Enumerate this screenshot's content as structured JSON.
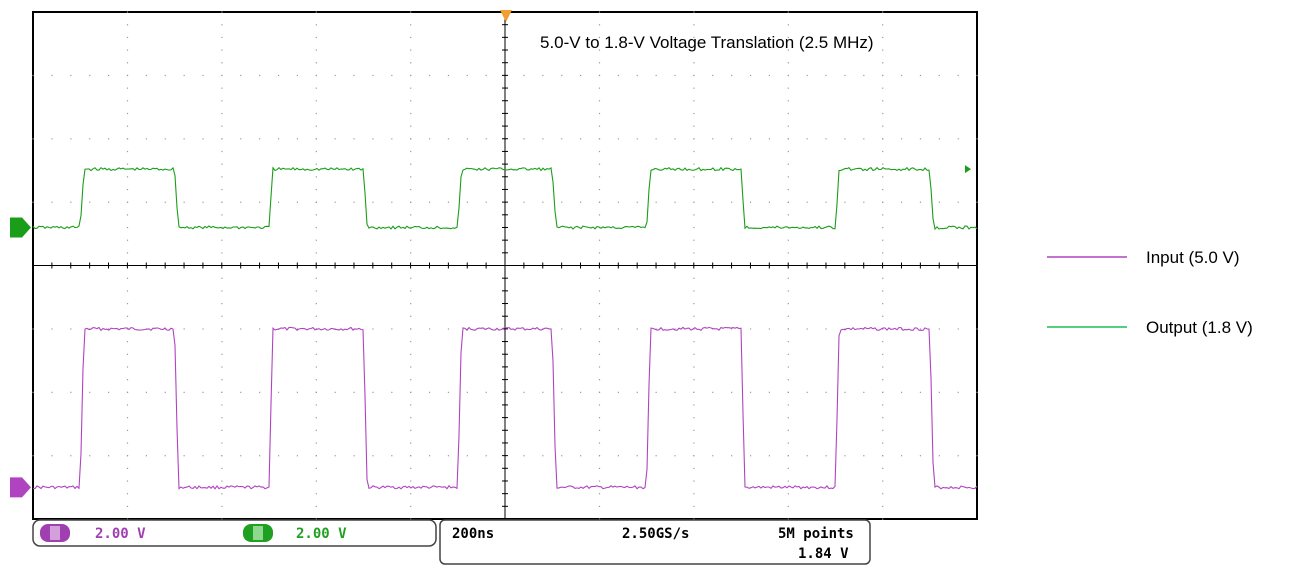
{
  "chart_data": {
    "type": "line",
    "title": "5.0-V to 1.8-V Voltage Translation (2.5 MHz)",
    "xlabel": "",
    "ylabel": "",
    "grid": true,
    "divisions": {
      "x": 10,
      "y": 8
    },
    "x_unit": "ns",
    "x_range": [
      0,
      2000
    ],
    "time_per_division_ns": 200,
    "frequency_mhz": 2.5,
    "period_ns": 400,
    "legend_position": "right",
    "series": [
      {
        "name": "Input (5.0 V)",
        "color": "#b044c0",
        "volts_per_division": 2.0,
        "low_v": 0.0,
        "high_v": 5.0,
        "rising_edges_ns": [
          100,
          500,
          900,
          1300,
          1700
        ],
        "falling_edges_ns": [
          300,
          700,
          1100,
          1500,
          1900
        ]
      },
      {
        "name": "Output (1.8 V)",
        "color": "#1a9e1a",
        "volts_per_division": 2.0,
        "low_v": 0.0,
        "high_v": 1.84,
        "rising_edges_ns": [
          100,
          500,
          900,
          1300,
          1700
        ],
        "falling_edges_ns": [
          300,
          700,
          1100,
          1500,
          1900
        ]
      }
    ],
    "status_bar": {
      "ch1_scale": "2.00 V",
      "ch2_scale": "2.00 V",
      "timebase": "200ns",
      "sample_rate": "2.50GS/s",
      "record_length": "5M points",
      "trigger_level": "1.84 V"
    }
  }
}
